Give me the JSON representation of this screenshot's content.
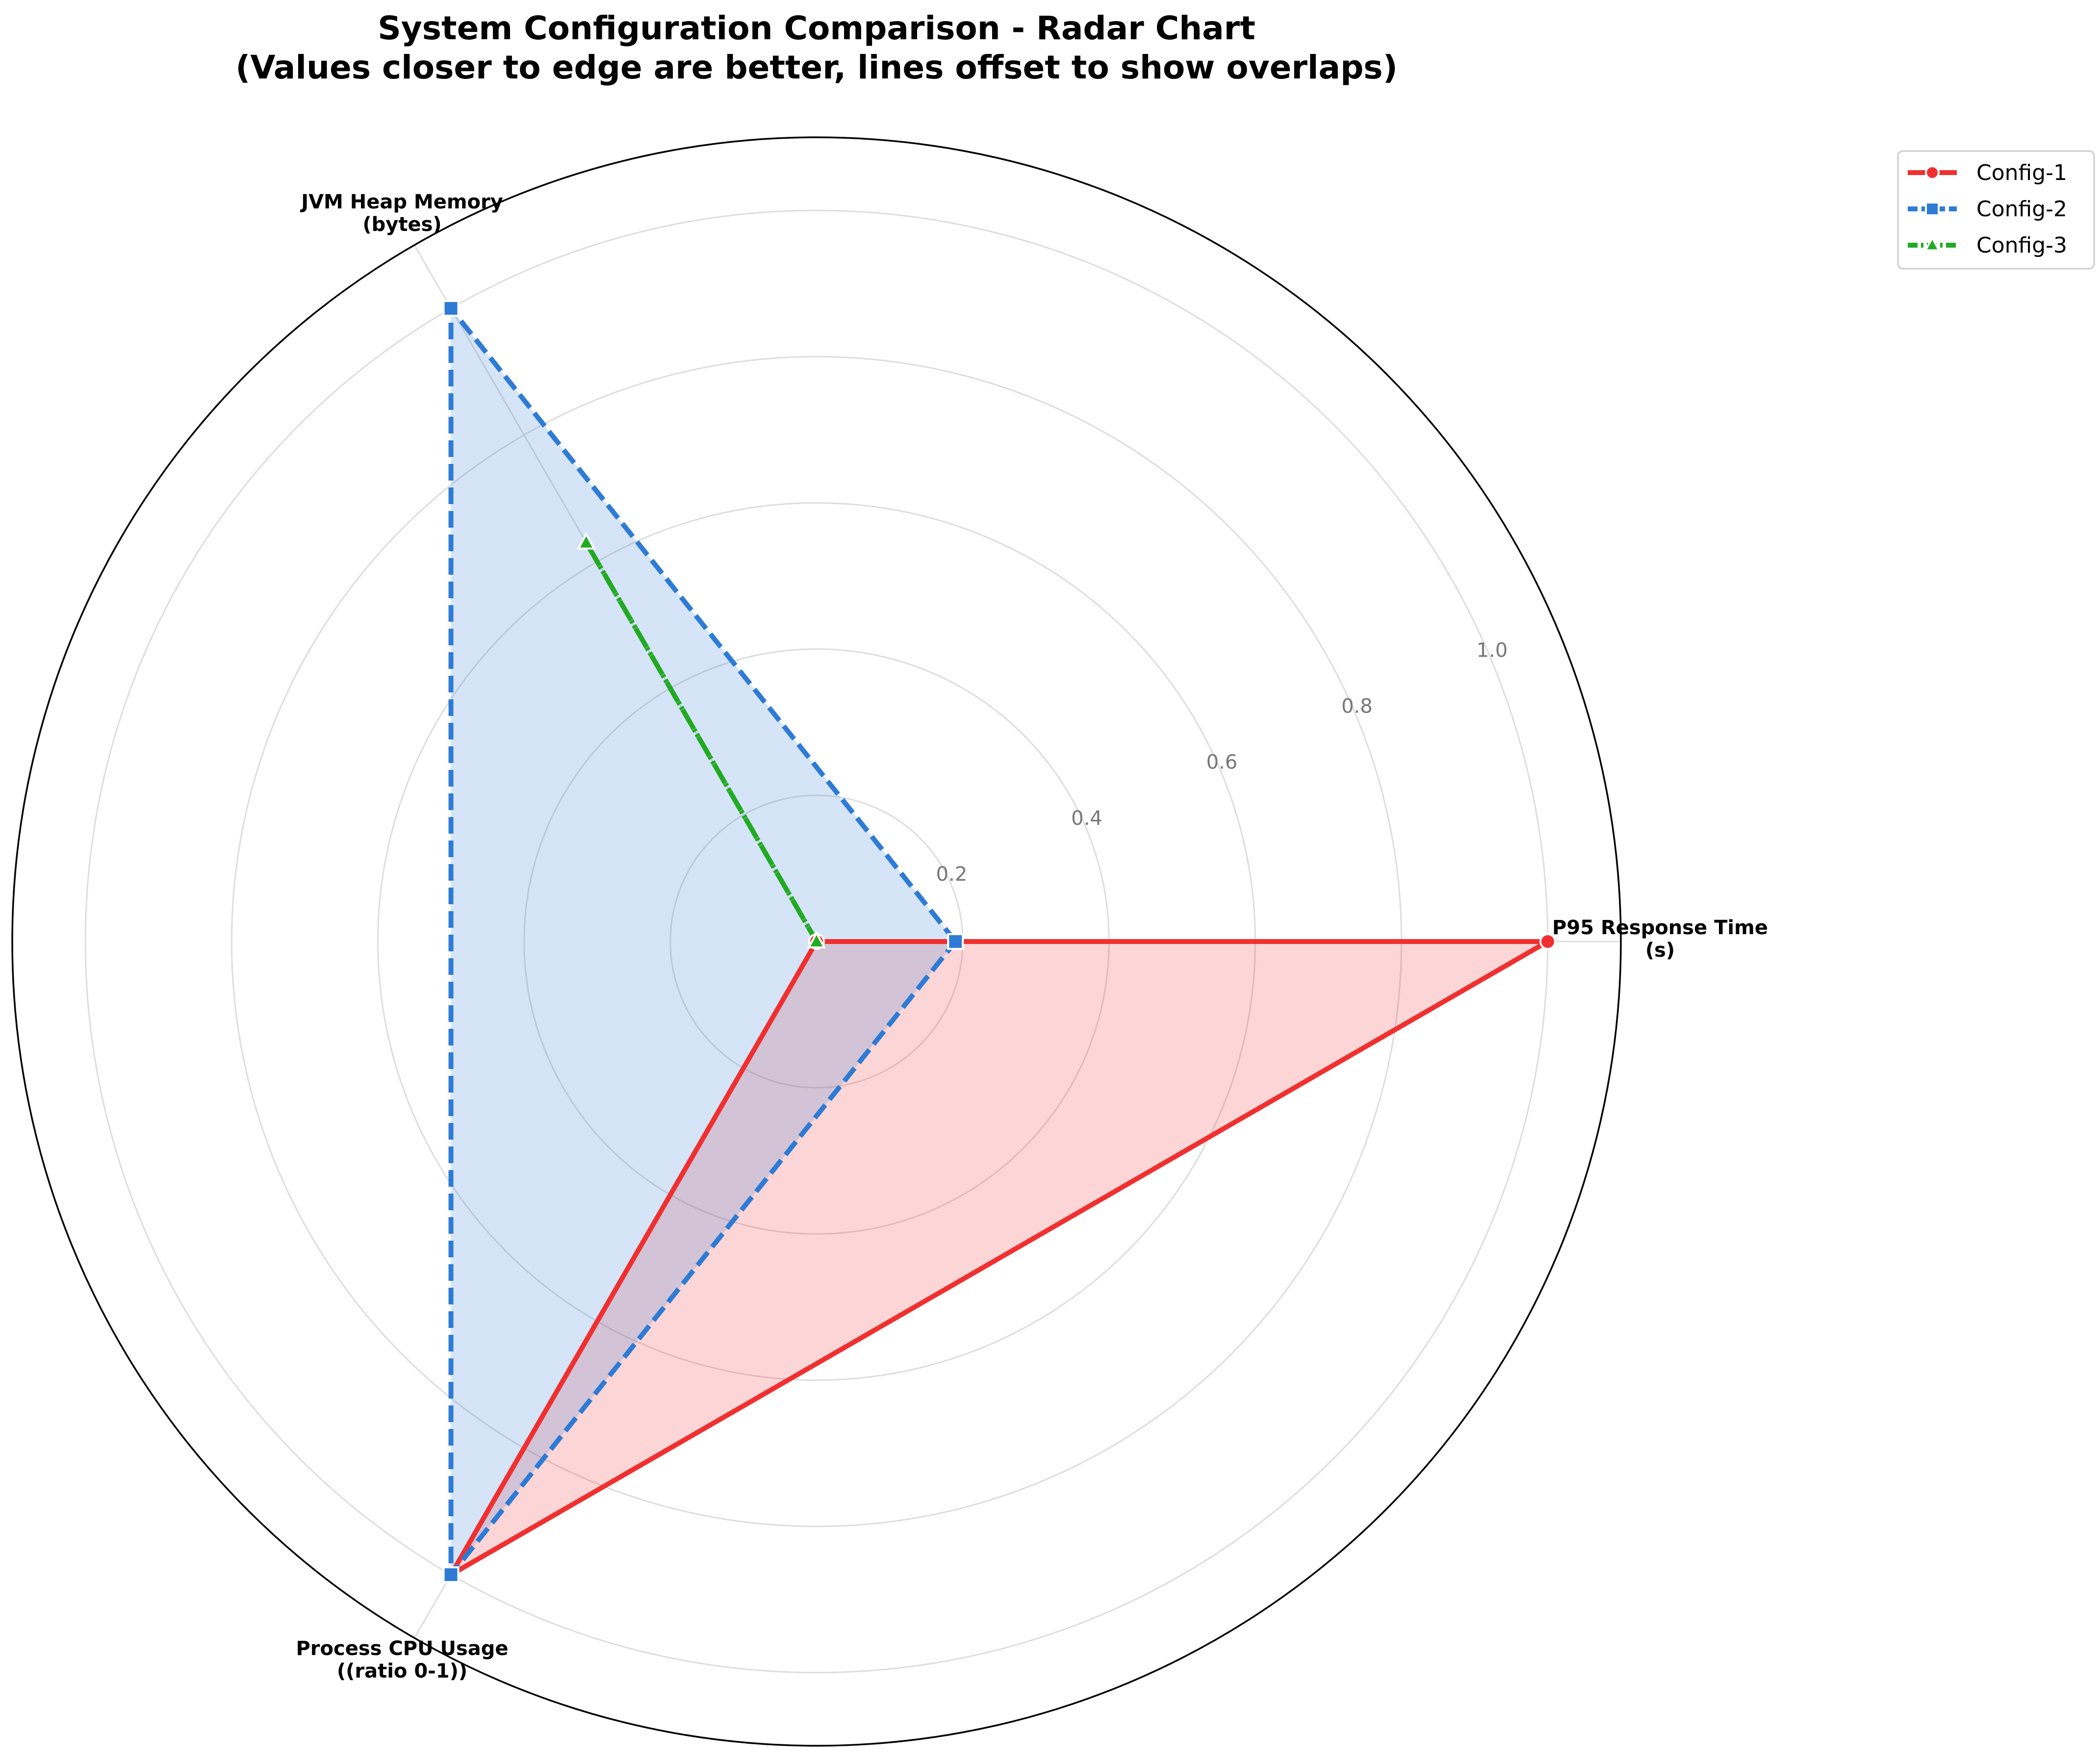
{
  "chart_data": {
    "type": "radar",
    "title": [
      "System Configuration Comparison - Radar Chart",
      "(Values closer to edge are better, lines offset to show overlaps)"
    ],
    "axes": [
      {
        "name": "P95 Response Time",
        "unit": "(s)"
      },
      {
        "name": "JVM Heap Memory",
        "unit": "(bytes)"
      },
      {
        "name": "Process CPU Usage",
        "unit": "((ratio 0-1))"
      }
    ],
    "radial_ticks": [
      "0.2",
      "0.4",
      "0.6",
      "0.8",
      "1.0"
    ],
    "radial_tick_values": [
      0.2,
      0.4,
      0.6,
      0.8,
      1.0
    ],
    "rlim": [
      0,
      1.1
    ],
    "grid": true,
    "legend_position": "top-right",
    "series": [
      {
        "name": "Config-1",
        "values": [
          1.0,
          0.0,
          1.0
        ],
        "color": "#f03030",
        "line": "solid",
        "marker": "circle",
        "fill": true
      },
      {
        "name": "Config-2",
        "values": [
          0.19,
          1.0,
          1.0
        ],
        "color": "#2e7bd6",
        "line": "dashed",
        "marker": "square",
        "fill": true
      },
      {
        "name": "Config-3",
        "values": [
          0.0,
          0.63,
          0.0
        ],
        "color": "#22aa22",
        "line": "dashdot",
        "marker": "triangle",
        "fill": false
      }
    ]
  }
}
